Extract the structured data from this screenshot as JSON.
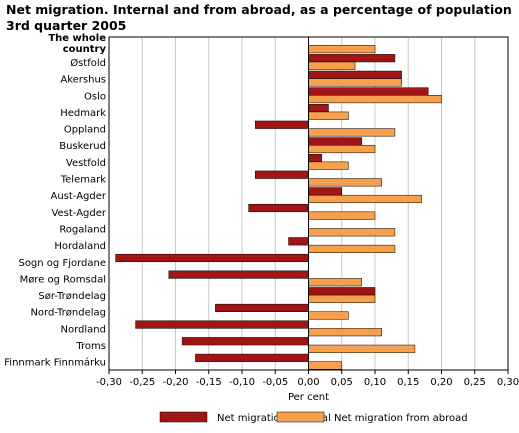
{
  "chart_data": {
    "type": "bar",
    "orientation": "horizontal",
    "title_line1": "Net migration. Internal and from abroad, as a percentage of population",
    "title_line2": "3rd quarter 2005",
    "xlabel": "Per cent",
    "ylabel": "",
    "xlim": [
      -0.3,
      0.3
    ],
    "xticks": [
      "-0,30",
      "-0,25",
      "-0,20",
      "-0,15",
      "-0,10",
      "-0,05",
      "0,00",
      "0,05",
      "0,10",
      "0,15",
      "0,20",
      "0,25",
      "0,30"
    ],
    "grid": true,
    "legend_position": "bottom",
    "categories": [
      "The whole country",
      "Østfold",
      "Akershus",
      "Oslo",
      "Hedmark",
      "Oppland",
      "Buskerud",
      "Vestfold",
      "Telemark",
      "Aust-Agder",
      "Vest-Agder",
      "Rogaland",
      "Hordaland",
      "Sogn og Fjordane",
      "Møre og Romsdal",
      "Sør-Trøndelag",
      "Nord-Trøndelag",
      "Nordland",
      "Troms",
      "Finnmark Finnmárku"
    ],
    "category_label_lines": [
      [
        "The whole",
        "country"
      ],
      [
        "Østfold"
      ],
      [
        "Akershus"
      ],
      [
        "Oslo"
      ],
      [
        "Hedmark"
      ],
      [
        "Oppland"
      ],
      [
        "Buskerud"
      ],
      [
        "Vestfold"
      ],
      [
        "Telemark"
      ],
      [
        "Aust-Agder"
      ],
      [
        "Vest-Agder"
      ],
      [
        "Rogaland"
      ],
      [
        "Hordaland"
      ],
      [
        "Sogn og Fjordane"
      ],
      [
        "Møre og Romsdal"
      ],
      [
        "Sør-Trøndelag"
      ],
      [
        "Nord-Trøndelag"
      ],
      [
        "Nordland"
      ],
      [
        "Troms"
      ],
      [
        "Finnmark Finnmárku"
      ]
    ],
    "series": [
      {
        "name": "Net migration, internal",
        "color": "#a31515",
        "values": [
          0.0,
          0.13,
          0.14,
          0.18,
          0.03,
          -0.08,
          0.08,
          0.02,
          -0.08,
          0.05,
          -0.09,
          0.0,
          -0.03,
          -0.29,
          -0.21,
          0.1,
          -0.14,
          -0.26,
          -0.19,
          -0.17
        ]
      },
      {
        "name": "Net migration from abroad",
        "color": "#f6a04d",
        "values": [
          0.1,
          0.07,
          0.14,
          0.2,
          0.06,
          0.13,
          0.1,
          0.06,
          0.11,
          0.17,
          0.1,
          0.13,
          0.13,
          0.0,
          0.08,
          0.1,
          0.06,
          0.11,
          0.16,
          0.05
        ]
      }
    ]
  }
}
